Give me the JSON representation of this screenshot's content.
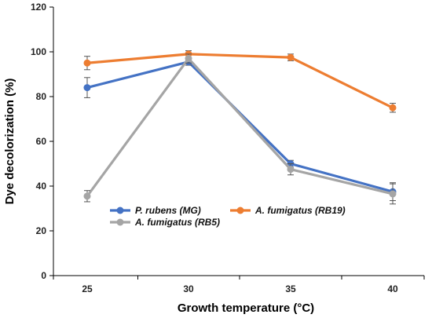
{
  "chart_data": {
    "type": "line",
    "x": [
      25,
      30,
      35,
      40
    ],
    "categories": [
      "25",
      "30",
      "35",
      "40"
    ],
    "xlabel": "Growth temperature (°C)",
    "ylabel": "Dye decolorization (%)",
    "ylim": [
      0,
      120
    ],
    "yticks": [
      0,
      20,
      40,
      60,
      80,
      100,
      120
    ],
    "grid": false,
    "legend_position": "bottom-center",
    "series": [
      {
        "name": "P. rubens (MG)",
        "color": "#4472C4",
        "values": [
          84,
          95.5,
          50,
          37.5
        ],
        "errors": [
          4.5,
          1.5,
          1.5,
          4
        ]
      },
      {
        "name": "A. fumigatus (RB19)",
        "color": "#ED7D31",
        "values": [
          95,
          99,
          97.5,
          75
        ],
        "errors": [
          3,
          1.5,
          1.5,
          2
        ]
      },
      {
        "name": "A. fumigatus (RB5)",
        "color": "#A5A5A5",
        "values": [
          35.5,
          97,
          47.5,
          36.5
        ],
        "errors": [
          2.5,
          2,
          2.5,
          4.5
        ]
      }
    ]
  }
}
